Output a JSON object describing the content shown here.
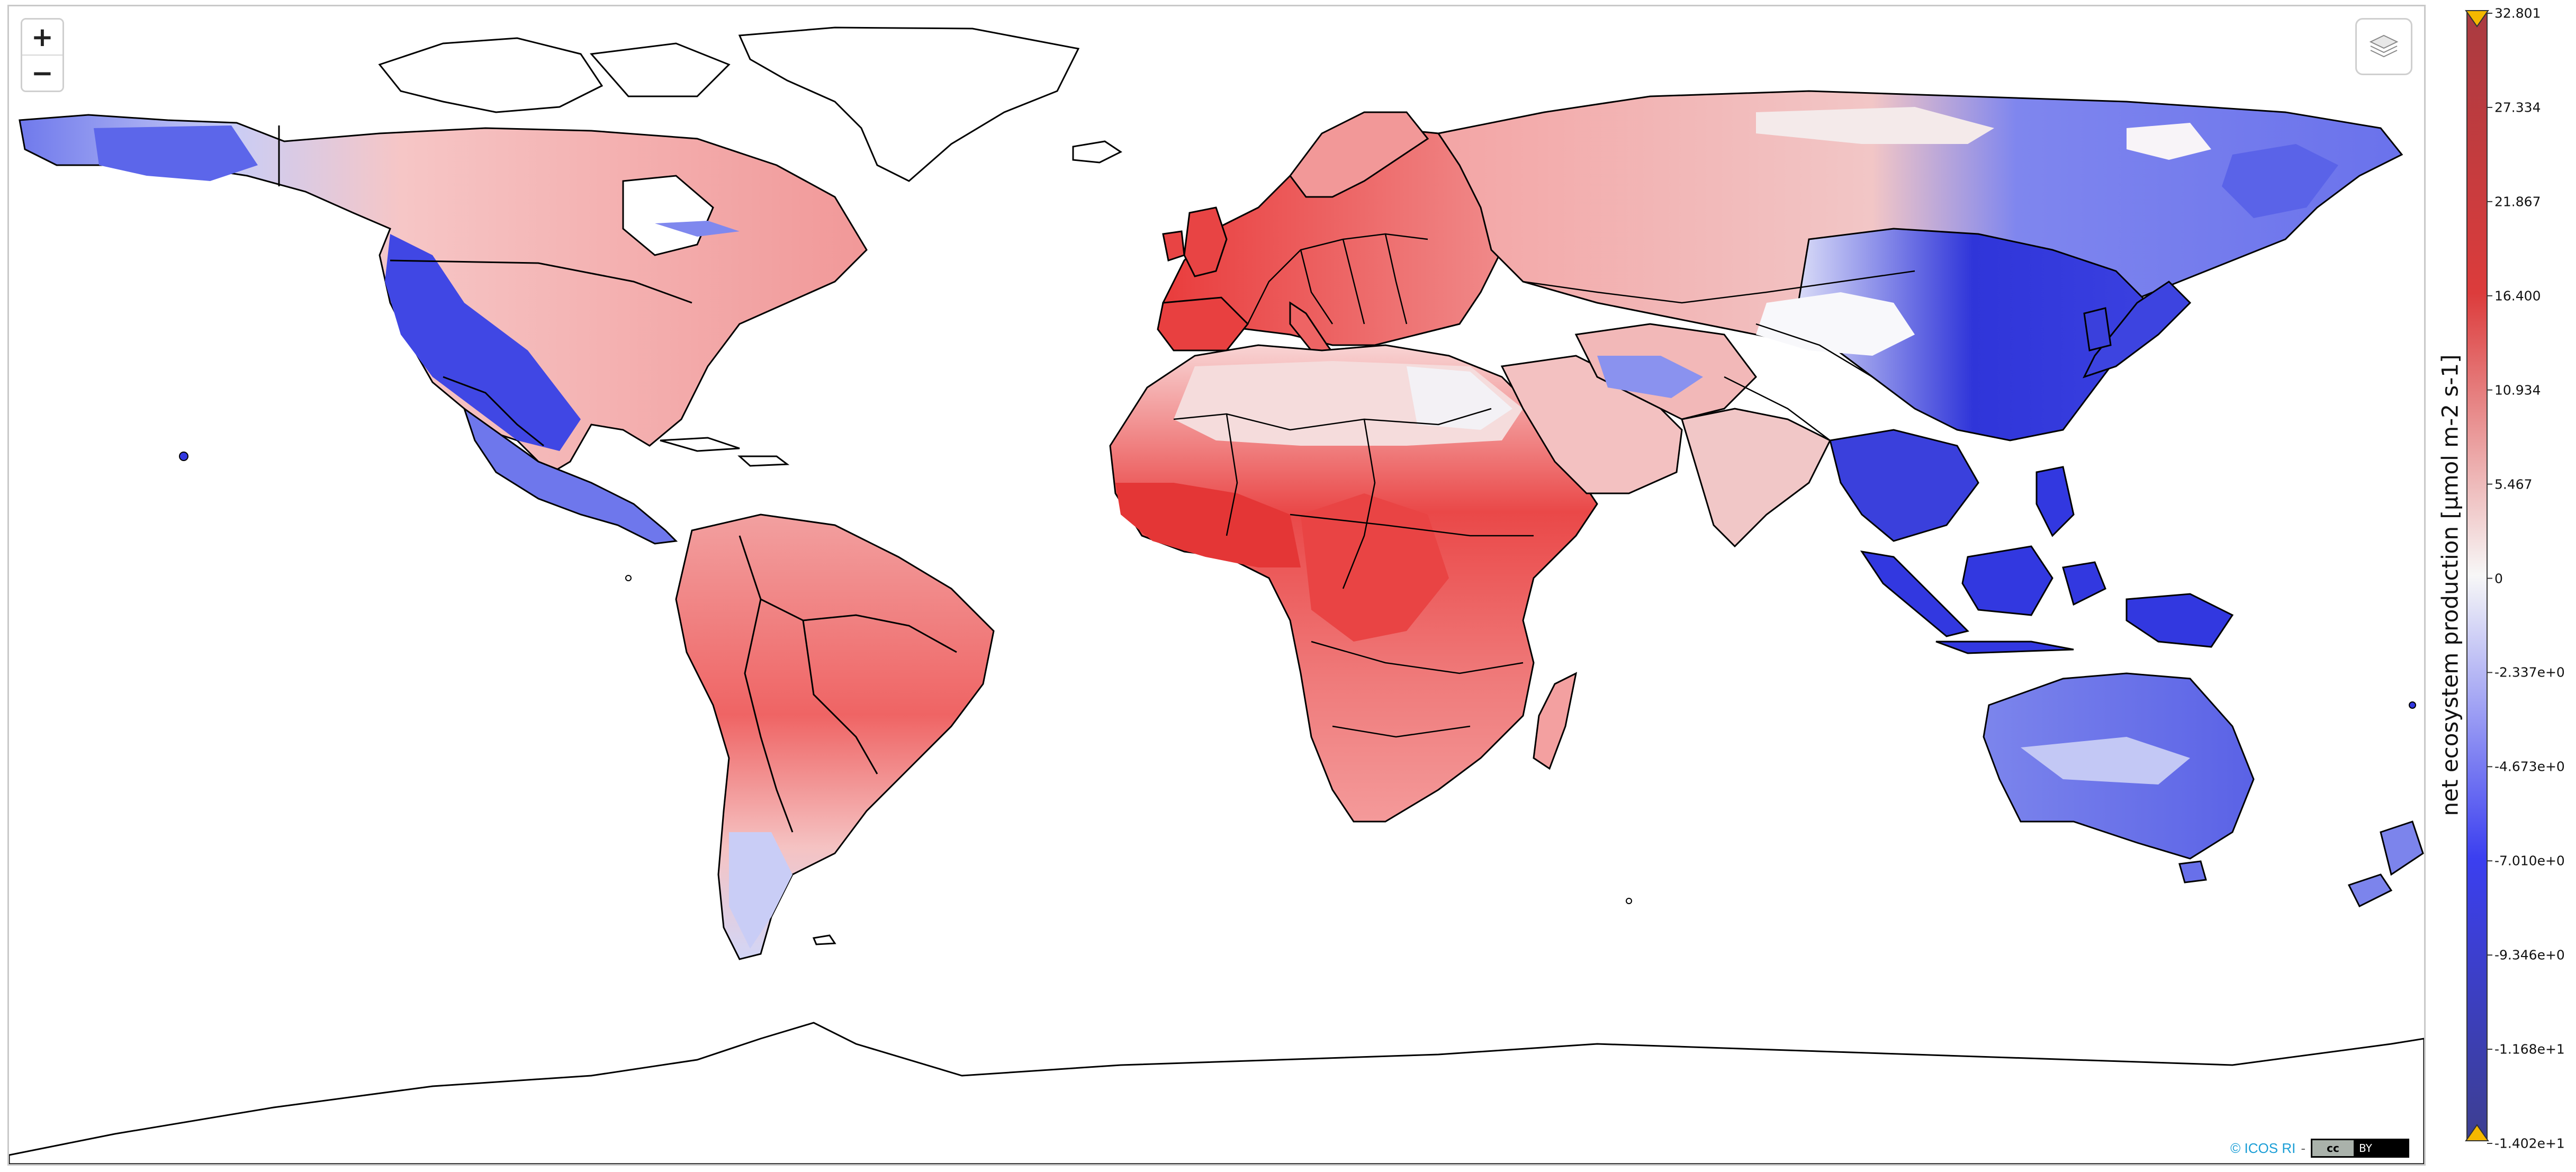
{
  "controls": {
    "zoom_in_label": "+",
    "zoom_out_label": "−",
    "layers_icon": "layers-icon"
  },
  "attribution": {
    "text": "© ICOS RI",
    "separator": "-",
    "license_left": "cc",
    "license_right": "BY"
  },
  "legend": {
    "title": "net ecosystem production [µmol m-2 s-1]",
    "ticks": [
      "32.801",
      "27.334",
      "21.867",
      "16.400",
      "10.934",
      "5.467",
      "0",
      "-2.337e+0",
      "-4.673e+0",
      "-7.010e+0",
      "-9.346e+0",
      "-1.168e+1",
      "-1.402e+1"
    ],
    "color_top": "#a93b41",
    "color_positive": "#f0393b",
    "color_zero": "#f7f7f7",
    "color_negative": "#3b3ff0",
    "color_bottom": "#3d3f90",
    "extend_marker_color": "#f5b800"
  },
  "map_colors": {
    "land_outline": "#000000",
    "ocean": "#ffffff",
    "strong_source": "#ea3b3b",
    "weak_source": "#f4a8a8",
    "neutral": "#f6f0f0",
    "weak_sink": "#9aa3f0",
    "strong_sink": "#3238e0"
  }
}
